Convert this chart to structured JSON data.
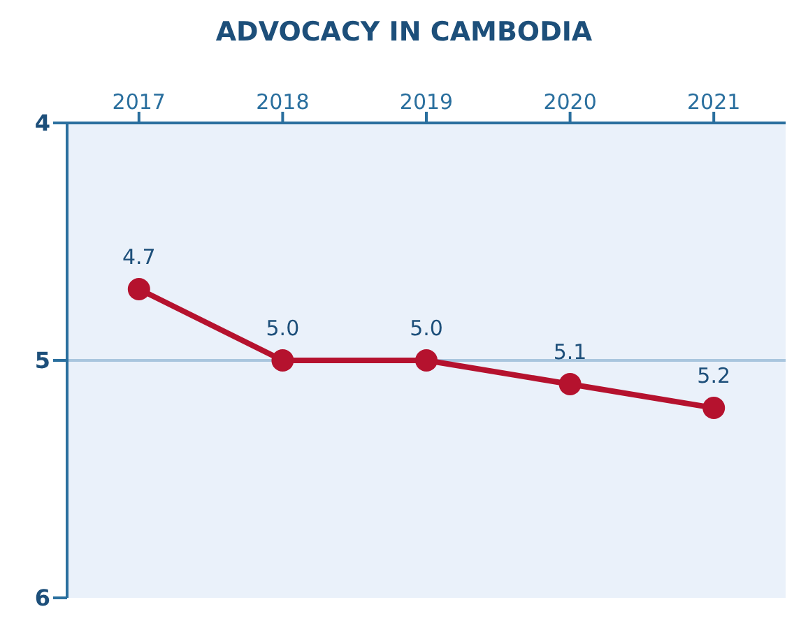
{
  "chart_data": {
    "type": "line",
    "title": "ADVOCACY IN CAMBODIA",
    "categories": [
      "2017",
      "2018",
      "2019",
      "2020",
      "2021"
    ],
    "series": [
      {
        "color": "#b5122e",
        "values": [
          4.7,
          5.0,
          5.0,
          5.1,
          5.2
        ],
        "value_labels": [
          "4.7",
          "5.0",
          "5.0",
          "5.1",
          "5.2"
        ]
      }
    ],
    "ylim": [
      6,
      4
    ],
    "yticks": [
      4,
      5,
      6
    ],
    "ref_lines": [
      {
        "axis": "y",
        "value": 5,
        "color": "#a9c6de"
      }
    ],
    "marker": "circle",
    "line_style": "solid"
  }
}
